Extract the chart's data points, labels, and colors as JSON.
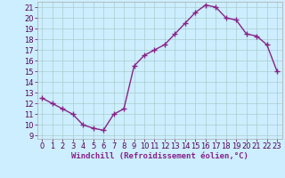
{
  "x": [
    0,
    1,
    2,
    3,
    4,
    5,
    6,
    7,
    8,
    9,
    10,
    11,
    12,
    13,
    14,
    15,
    16,
    17,
    18,
    19,
    20,
    21,
    22,
    23
  ],
  "y": [
    12.5,
    12.0,
    11.5,
    11.0,
    10.0,
    9.7,
    9.5,
    11.0,
    11.5,
    15.5,
    16.5,
    17.0,
    17.5,
    18.5,
    19.5,
    20.5,
    21.2,
    21.0,
    20.0,
    19.8,
    18.5,
    18.3,
    17.5,
    15.0
  ],
  "line_color": "#882288",
  "marker": "+",
  "bg_color": "#cceeff",
  "grid_color": "#aacccc",
  "xlabel": "Windchill (Refroidissement éolien,°C)",
  "xlabel_color": "#882288",
  "ytick_min": 9,
  "ytick_max": 21,
  "xtick_labels": [
    "0",
    "1",
    "2",
    "3",
    "4",
    "5",
    "6",
    "7",
    "8",
    "9",
    "10",
    "11",
    "12",
    "13",
    "14",
    "15",
    "16",
    "17",
    "18",
    "19",
    "20",
    "21",
    "22",
    "23"
  ],
  "line_width": 1.0,
  "marker_size": 4,
  "tick_fontsize": 6,
  "xlabel_fontsize": 6.5
}
